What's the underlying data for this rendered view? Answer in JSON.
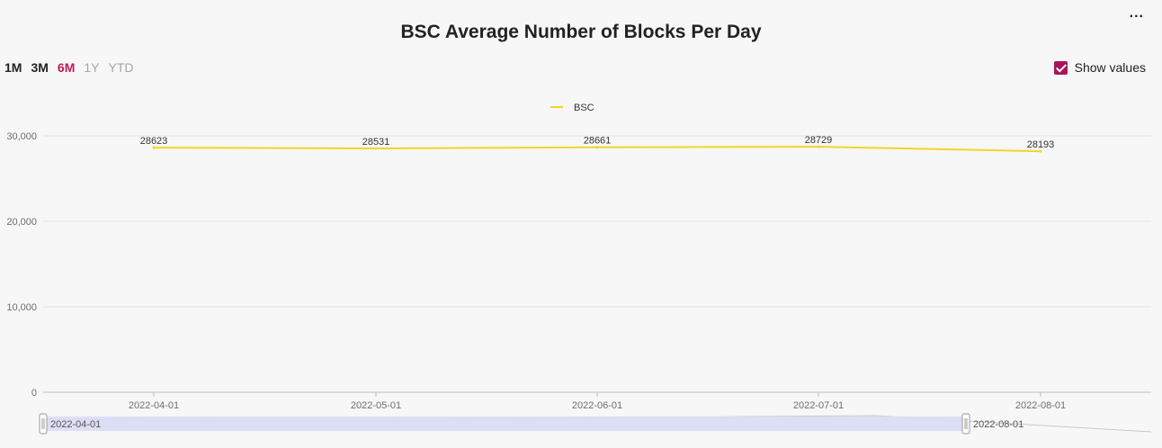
{
  "header": {
    "title": "BSC Average Number of Blocks Per Day",
    "more_label": "..."
  },
  "ranges": [
    {
      "label": "1M",
      "state": "on"
    },
    {
      "label": "3M",
      "state": "on"
    },
    {
      "label": "6M",
      "state": "active"
    },
    {
      "label": "1Y",
      "state": "off"
    },
    {
      "label": "YTD",
      "state": "off"
    }
  ],
  "show_values": {
    "label": "Show values",
    "checked": true
  },
  "zoom": {
    "start_label": "2022-04-01",
    "end_label": "2022-08-01"
  },
  "colors": {
    "series": "#f5d428",
    "accent": "#c2185b",
    "zoom_fill": "#d9dcf5"
  },
  "chart_data": {
    "type": "line",
    "title": "BSC Average Number of Blocks Per Day",
    "x": [
      "2022-04-01",
      "2022-05-01",
      "2022-06-01",
      "2022-07-01",
      "2022-08-01"
    ],
    "series": [
      {
        "name": "BSC",
        "values": [
          28623,
          28531,
          28661,
          28729,
          28193
        ]
      }
    ],
    "y_ticks": [
      "0",
      "10,000",
      "20,000",
      "30,000"
    ],
    "ylim": [
      0,
      30000
    ],
    "grid": true,
    "legend": "top-center",
    "show_values": true
  }
}
